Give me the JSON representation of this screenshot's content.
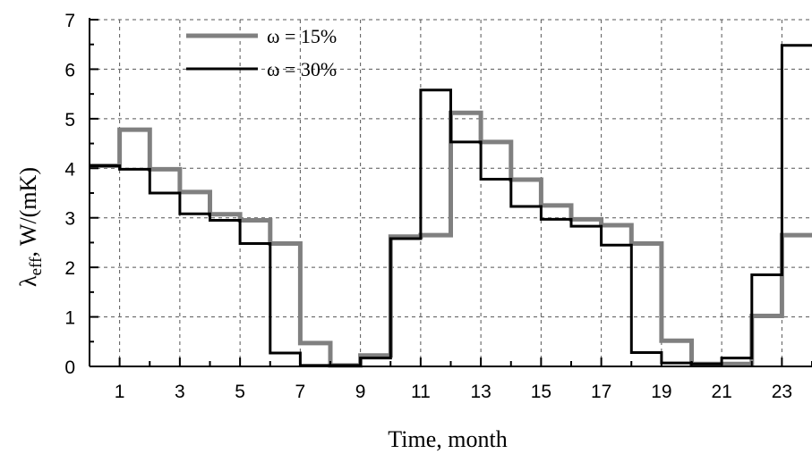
{
  "chart_data": {
    "type": "line",
    "step": true,
    "xlabel": "Time, month",
    "ylabel_main": "λ",
    "ylabel_sub": "eff",
    "ylabel_rest": ", W/(mK)",
    "xlim": [
      0,
      24
    ],
    "ylim": [
      0,
      7
    ],
    "x_ticks": [
      1,
      3,
      5,
      7,
      9,
      11,
      13,
      15,
      17,
      19,
      21,
      23
    ],
    "y_ticks": [
      0,
      1,
      2,
      3,
      4,
      5,
      6,
      7
    ],
    "grid": true,
    "legend_position": "top-left",
    "series": [
      {
        "name": "ω = 15%",
        "color": "#808080",
        "width": 5,
        "values": [
          4.05,
          4.78,
          3.98,
          3.52,
          3.07,
          2.95,
          2.48,
          0.47,
          0.02,
          0.22,
          2.62,
          2.65,
          5.12,
          4.53,
          3.77,
          3.25,
          2.97,
          2.85,
          2.48,
          0.52,
          0.05,
          0.05,
          1.02,
          2.65
        ]
      },
      {
        "name": "ω = 30%",
        "color": "#000000",
        "width": 3,
        "values": [
          4.05,
          3.98,
          3.5,
          3.08,
          2.95,
          2.48,
          0.27,
          0.02,
          0.02,
          0.17,
          2.58,
          5.58,
          4.53,
          3.78,
          3.23,
          2.97,
          2.83,
          2.45,
          0.28,
          0.07,
          0.05,
          0.17,
          1.85,
          6.48
        ]
      }
    ]
  }
}
